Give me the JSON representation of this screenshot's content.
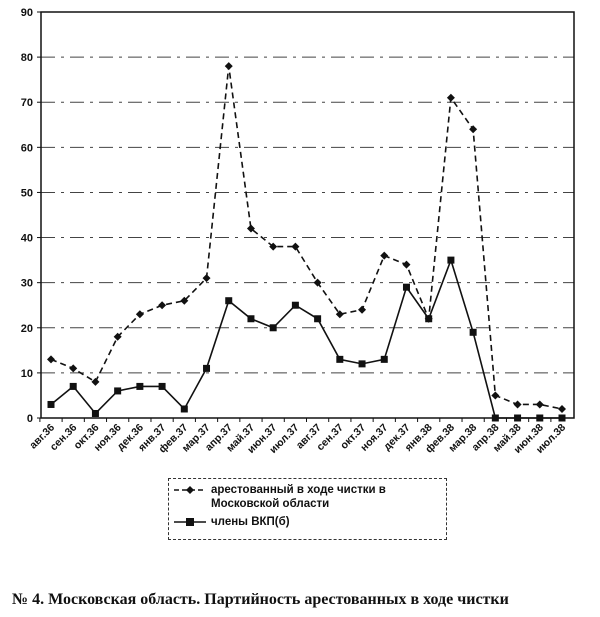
{
  "chart_data": {
    "type": "line",
    "categories": [
      "авг.36",
      "сен.36",
      "окт.36",
      "ноя.36",
      "дек.36",
      "янв.37",
      "фев.37",
      "мар.37",
      "апр.37",
      "май.37",
      "июн.37",
      "июл.37",
      "авг.37",
      "сен.37",
      "окт.37",
      "ноя.37",
      "дек.37",
      "янв.38",
      "фев.38",
      "мар.38",
      "апр.38",
      "май.38",
      "июн.38",
      "июл.38"
    ],
    "series": [
      {
        "name": "арестованный в ходе чистки в Московской области",
        "style": "dashed",
        "marker": "diamond",
        "values": [
          13,
          11,
          8,
          18,
          23,
          25,
          26,
          31,
          78,
          42,
          38,
          38,
          30,
          23,
          24,
          36,
          34,
          22,
          71,
          64,
          5,
          3,
          3,
          2
        ]
      },
      {
        "name": "члены ВКП(б)",
        "style": "solid",
        "marker": "square",
        "values": [
          3,
          7,
          1,
          6,
          7,
          7,
          2,
          11,
          26,
          22,
          20,
          25,
          22,
          13,
          12,
          13,
          29,
          22,
          35,
          19,
          0,
          0,
          0,
          0
        ]
      }
    ],
    "ylim": [
      0,
      90
    ],
    "yticks": [
      0,
      10,
      20,
      30,
      40,
      50,
      60,
      70,
      80,
      90
    ],
    "grid": true,
    "legend_position": "bottom",
    "color": "#111111"
  },
  "caption": "№ 4. Московская область. Партийность арестованных в ходе чистки"
}
